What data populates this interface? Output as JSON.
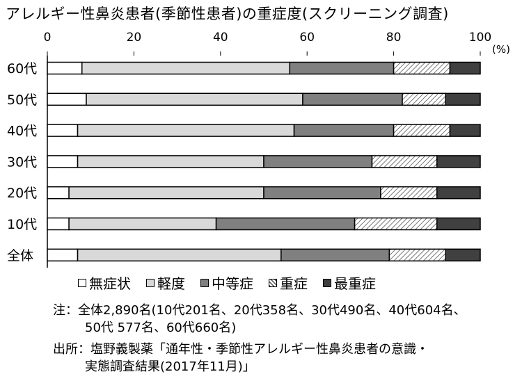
{
  "title": "アレルギー性鼻炎患者(季節性患者)の重症度(スクリーニング調査)",
  "chart_data": {
    "type": "bar",
    "orientation": "horizontal",
    "stacked": true,
    "xlim": [
      0,
      100
    ],
    "xticks": [
      "0",
      "20",
      "40",
      "60",
      "80",
      "100"
    ],
    "unit_label": "(%)",
    "categories": [
      "60代",
      "50代",
      "40代",
      "30代",
      "20代",
      "10代",
      "全体"
    ],
    "series": [
      {
        "name": "無症状",
        "color": "#ffffff",
        "pattern": "none",
        "values": [
          8,
          9,
          7,
          7,
          5,
          5,
          7
        ]
      },
      {
        "name": "軽度",
        "color": "#d9d9d9",
        "pattern": "none",
        "values": [
          48,
          50,
          50,
          43,
          45,
          34,
          47
        ]
      },
      {
        "name": "中等症",
        "color": "#808080",
        "pattern": "none",
        "values": [
          24,
          23,
          23,
          25,
          27,
          32,
          25
        ]
      },
      {
        "name": "重症",
        "color": "#ffffff",
        "pattern": "hatch",
        "values": [
          13,
          10,
          13,
          15,
          13,
          19,
          13
        ]
      },
      {
        "name": "最重症",
        "color": "#404040",
        "pattern": "none",
        "values": [
          7,
          8,
          7,
          10,
          10,
          10,
          8
        ]
      }
    ],
    "legend_position": "bottom",
    "grid": false
  },
  "notes": {
    "note_line1": "注：全体2,890名(10代201名、20代358名、30代490名、40代604名、",
    "note_line2": "50代 577名、60代660名)",
    "source_line1": "出所：塩野義製薬「通年性・季節性アレルギー性鼻炎患者の意識・",
    "source_line2": "実態調査結果(2017年11月)」"
  }
}
